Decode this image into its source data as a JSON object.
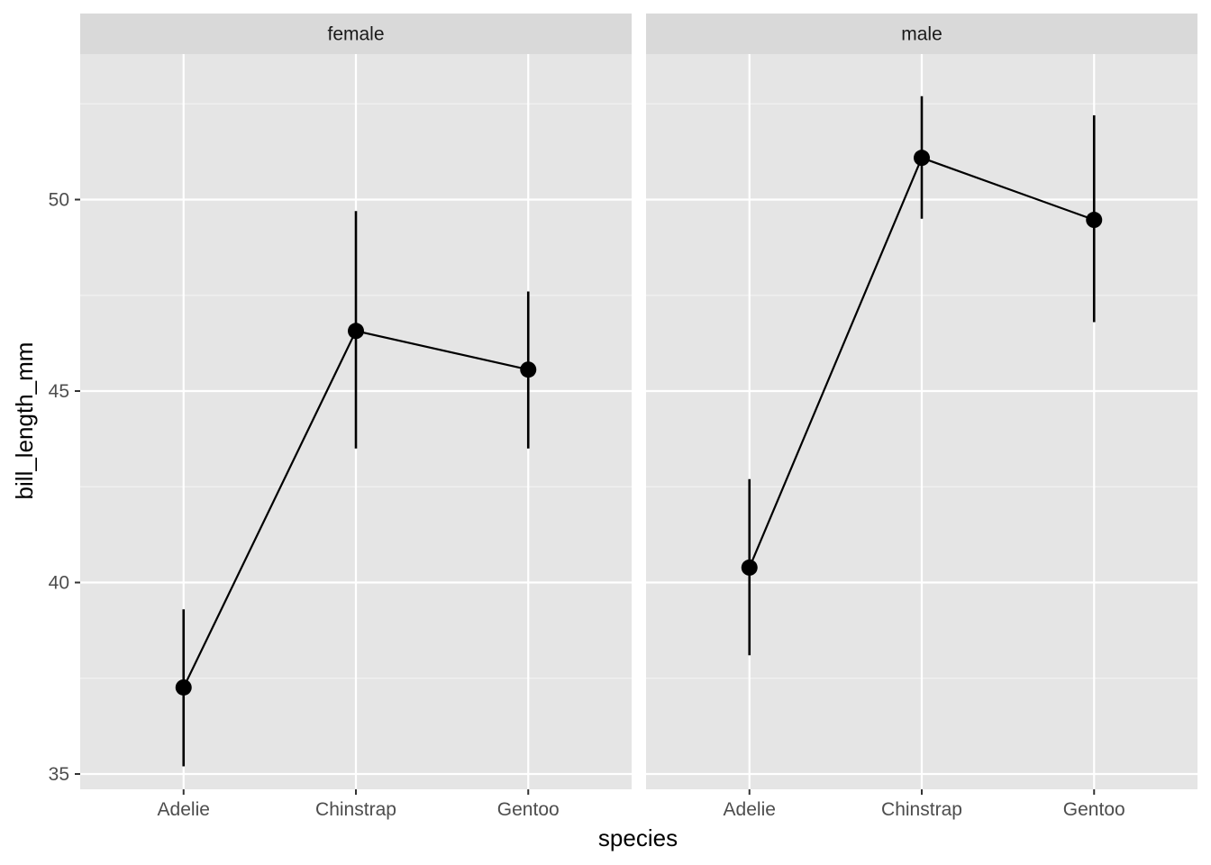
{
  "chart_data": {
    "type": "line",
    "xlabel": "species",
    "ylabel": "bill_length_mm",
    "categories": [
      "Adelie",
      "Chinstrap",
      "Gentoo"
    ],
    "ylim": [
      34.6,
      53.8
    ],
    "yticks": [
      35,
      40,
      45,
      50
    ],
    "grid": true,
    "facets": [
      {
        "label": "female",
        "points": [
          {
            "x": "Adelie",
            "y": 37.26,
            "ymin": 35.2,
            "ymax": 39.3
          },
          {
            "x": "Chinstrap",
            "y": 46.57,
            "ymin": 43.5,
            "ymax": 49.7
          },
          {
            "x": "Gentoo",
            "y": 45.56,
            "ymin": 43.5,
            "ymax": 47.6
          }
        ]
      },
      {
        "label": "male",
        "points": [
          {
            "x": "Adelie",
            "y": 40.39,
            "ymin": 38.1,
            "ymax": 42.7
          },
          {
            "x": "Chinstrap",
            "y": 51.09,
            "ymin": 49.5,
            "ymax": 52.7
          },
          {
            "x": "Gentoo",
            "y": 49.47,
            "ymin": 46.8,
            "ymax": 52.2
          }
        ]
      }
    ]
  }
}
